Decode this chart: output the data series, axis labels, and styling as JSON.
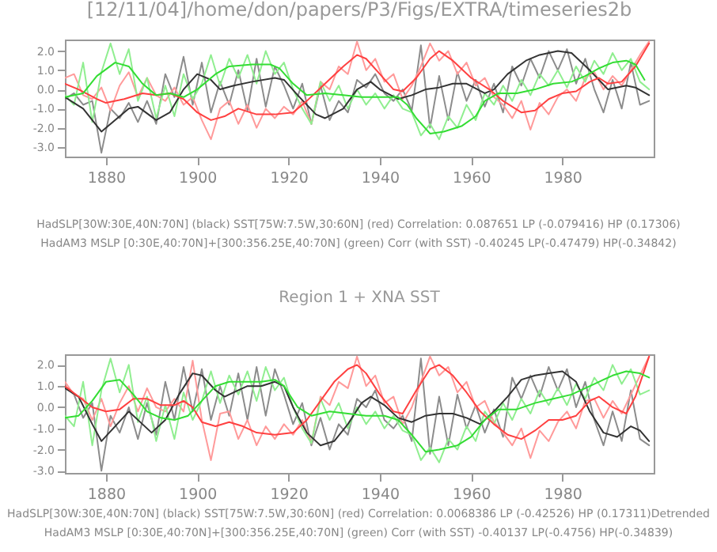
{
  "chart_data": [
    {
      "type": "line",
      "title": "[12/11/04]/home/don/papers/P3/Figs/EXTRA/timeseries2b",
      "xlim": [
        1871,
        2000
      ],
      "xticks": [
        1880,
        1900,
        1920,
        1940,
        1960,
        1980
      ],
      "ylim": [
        -3.5,
        2.6
      ],
      "yticks": [
        {
          "value": -3,
          "label": "-3.0"
        },
        {
          "value": -2,
          "label": "-2.0"
        },
        {
          "value": -1,
          "label": "-1.0"
        },
        {
          "value": 0,
          "label": "0.0"
        },
        {
          "value": 1,
          "label": "1.0"
        },
        {
          "value": 2,
          "label": "2.0"
        }
      ],
      "grid": false,
      "line_style": "solid",
      "annotations": [
        "HadSLP[30W:30E,40N:70N] (black) SST[75W:7.5W,30:60N] (red) Correlation: 0.087651 LP (-0.079416) HP (0.17306)",
        "HadAM3 MSLP [0:30E,40:70N]+[300:356.25E,40:70N] (green) Corr (with SST) -0.40245 LP(-0.47479) HP(-0.34842)"
      ],
      "series": [
        {
          "color": "#8c8c8c",
          "x": [
            1871,
            1873,
            1875,
            1877,
            1879,
            1881,
            1883,
            1885,
            1887,
            1889,
            1891,
            1893,
            1895,
            1897,
            1899,
            1901,
            1903,
            1905,
            1907,
            1909,
            1911,
            1913,
            1915,
            1917,
            1919,
            1921,
            1923,
            1925,
            1927,
            1929,
            1931,
            1933,
            1935,
            1937,
            1939,
            1941,
            1943,
            1945,
            1947,
            1949,
            1951,
            1953,
            1955,
            1957,
            1959,
            1961,
            1963,
            1965,
            1967,
            1969,
            1971,
            1973,
            1975,
            1977,
            1979,
            1981,
            1983,
            1985,
            1987,
            1989,
            1991,
            1993,
            1995,
            1997,
            1999
          ],
          "values": [
            -0.5,
            -0.2,
            -0.8,
            -0.6,
            -3.3,
            -1.0,
            -1.5,
            -0.7,
            -1.7,
            -0.6,
            -1.8,
            0.8,
            -0.4,
            1.7,
            -0.8,
            1.4,
            -1.2,
            0.4,
            -0.8,
            1.0,
            -1.1,
            1.6,
            -0.9,
            1.2,
            0.2,
            -1.0,
            0.3,
            -1.8,
            0.2,
            -1.6,
            -0.6,
            -1.2,
            0.5,
            0.1,
            0.8,
            -0.2,
            -0.6,
            0.0,
            -1.1,
            2.3,
            -2.0,
            0.7,
            -1.6,
            0.9,
            -0.6,
            0.5,
            -0.9,
            0.3,
            -1.2,
            1.2,
            0.2,
            1.6,
            0.6,
            2.0,
            1.0,
            2.1,
            0.3,
            1.6,
            0.0,
            -1.2,
            0.5,
            -1.0,
            1.4,
            -0.8,
            -0.6
          ]
        },
        {
          "color": "#ff9a9a",
          "x": [
            1871,
            1873,
            1875,
            1877,
            1879,
            1881,
            1883,
            1885,
            1887,
            1889,
            1891,
            1893,
            1895,
            1897,
            1899,
            1901,
            1903,
            1905,
            1907,
            1909,
            1911,
            1913,
            1915,
            1917,
            1919,
            1921,
            1923,
            1925,
            1927,
            1929,
            1931,
            1933,
            1935,
            1937,
            1939,
            1941,
            1943,
            1945,
            1947,
            1949,
            1951,
            1953,
            1955,
            1957,
            1959,
            1961,
            1963,
            1965,
            1967,
            1969,
            1971,
            1973,
            1975,
            1977,
            1979,
            1981,
            1983,
            1985,
            1987,
            1989,
            1991,
            1993,
            1995,
            1997,
            1999
          ],
          "values": [
            0.6,
            0.8,
            -0.3,
            -0.5,
            0.1,
            -1.1,
            0.2,
            0.9,
            -0.4,
            0.6,
            -0.3,
            -0.6,
            0.1,
            -0.8,
            -0.4,
            -1.6,
            -2.6,
            -1.0,
            -0.6,
            -1.8,
            -0.8,
            -2.0,
            -1.0,
            -1.5,
            -0.9,
            -1.3,
            -0.6,
            -1.8,
            0.4,
            0.0,
            1.2,
            0.8,
            2.5,
            1.0,
            1.6,
            0.4,
            0.8,
            -0.5,
            0.2,
            1.2,
            2.4,
            1.5,
            2.0,
            0.8,
            1.4,
            0.2,
            0.6,
            -0.4,
            -0.8,
            -1.5,
            -0.6,
            -2.1,
            -0.7,
            -1.3,
            -0.4,
            0.0,
            -0.6,
            0.6,
            0.9,
            0.0,
            0.7,
            0.2,
            1.0,
            1.8,
            2.5
          ]
        },
        {
          "color": "#90ee90",
          "x": [
            1871,
            1873,
            1875,
            1877,
            1879,
            1881,
            1883,
            1885,
            1887,
            1889,
            1891,
            1893,
            1895,
            1897,
            1899,
            1901,
            1903,
            1905,
            1907,
            1909,
            1911,
            1913,
            1915,
            1917,
            1919,
            1921,
            1923,
            1925,
            1927,
            1929,
            1931,
            1933,
            1935,
            1937,
            1939,
            1941,
            1943,
            1945,
            1947,
            1949,
            1951,
            1953,
            1955,
            1957,
            1959,
            1961,
            1963,
            1965,
            1967,
            1969,
            1971,
            1973,
            1975,
            1977,
            1979,
            1981,
            1983,
            1985,
            1987,
            1989,
            1991,
            1993,
            1995,
            1997,
            1999
          ],
          "values": [
            -0.3,
            -0.8,
            1.4,
            -1.7,
            0.9,
            2.4,
            0.8,
            2.1,
            -0.6,
            0.6,
            -1.5,
            0.2,
            -1.4,
            0.8,
            -0.5,
            0.3,
            1.8,
            0.2,
            1.6,
            0.6,
            1.8,
            0.3,
            2.0,
            0.8,
            1.4,
            0.0,
            -1.0,
            -1.8,
            0.4,
            -0.6,
            0.2,
            -1.0,
            0.0,
            -0.8,
            -0.2,
            -1.0,
            -0.3,
            -1.0,
            -1.2,
            -2.4,
            -1.8,
            -2.6,
            -1.4,
            -2.0,
            -0.8,
            -1.6,
            -0.2,
            -0.8,
            0.2,
            -0.6,
            0.5,
            -0.3,
            0.8,
            0.2,
            1.0,
            0.1,
            1.2,
            0.4,
            1.5,
            0.8,
            1.9,
            1.0,
            1.6,
            0.4,
            0.0
          ]
        },
        {
          "color": "#333333",
          "x": [
            1871,
            1875,
            1879,
            1885,
            1887,
            1891,
            1894,
            1897,
            1900,
            1903,
            1905,
            1908,
            1912,
            1917,
            1919,
            1922,
            1926,
            1928,
            1932,
            1935,
            1938,
            1940,
            1944,
            1947,
            1950,
            1953,
            1956,
            1959,
            1963,
            1965,
            1968,
            1972,
            1975,
            1979,
            1982,
            1986,
            1990,
            1994,
            1996,
            1999
          ],
          "values": [
            -0.4,
            -1.0,
            -2.2,
            -1.0,
            -0.9,
            -1.6,
            -1.2,
            0.0,
            0.8,
            0.5,
            0.0,
            0.2,
            0.4,
            0.6,
            0.5,
            -0.3,
            -1.3,
            -1.5,
            -1.0,
            0.0,
            0.4,
            0.0,
            -0.5,
            -0.3,
            0.0,
            0.1,
            0.3,
            0.3,
            -0.2,
            0.0,
            0.8,
            1.5,
            1.8,
            2.0,
            1.9,
            1.0,
            0.0,
            0.2,
            0.1,
            -0.3
          ]
        },
        {
          "color": "#ff4040",
          "x": [
            1871,
            1874,
            1878,
            1880,
            1884,
            1888,
            1891,
            1894,
            1897,
            1900,
            1903,
            1906,
            1909,
            1913,
            1917,
            1921,
            1924,
            1928,
            1932,
            1935,
            1937,
            1940,
            1943,
            1945,
            1948,
            1951,
            1953,
            1956,
            1960,
            1964,
            1967,
            1971,
            1974,
            1977,
            1980,
            1983,
            1986,
            1988,
            1990,
            1993,
            1996,
            1999
          ],
          "values": [
            0.3,
            0.0,
            -0.5,
            -0.7,
            -0.5,
            -0.2,
            -0.3,
            -0.2,
            -0.5,
            -1.2,
            -1.6,
            -1.4,
            -1.0,
            -1.3,
            -1.3,
            -1.2,
            -0.6,
            0.3,
            1.2,
            1.8,
            1.6,
            0.8,
            0.0,
            -0.1,
            0.6,
            1.6,
            2.0,
            1.5,
            0.6,
            0.0,
            -0.6,
            -1.2,
            -1.1,
            -0.5,
            -0.2,
            -0.1,
            0.4,
            0.6,
            0.3,
            0.4,
            1.2,
            2.4
          ]
        },
        {
          "color": "#33dd33",
          "x": [
            1871,
            1875,
            1878,
            1882,
            1885,
            1888,
            1891,
            1894,
            1897,
            1900,
            1904,
            1907,
            1912,
            1916,
            1918,
            1921,
            1924,
            1928,
            1932,
            1936,
            1940,
            1944,
            1946,
            1948,
            1951,
            1954,
            1958,
            1961,
            1963,
            1966,
            1970,
            1974,
            1978,
            1982,
            1985,
            1988,
            1991,
            1994,
            1996,
            1998
          ],
          "values": [
            -0.4,
            -0.2,
            0.7,
            1.4,
            1.2,
            0.3,
            -0.3,
            -0.2,
            -0.4,
            0.0,
            0.8,
            1.2,
            1.3,
            1.3,
            1.1,
            0.3,
            -0.3,
            -0.2,
            -0.3,
            -0.4,
            -0.4,
            -0.4,
            -0.8,
            -1.5,
            -2.3,
            -2.2,
            -1.9,
            -1.4,
            -0.6,
            -0.2,
            -0.2,
            0.0,
            0.3,
            0.4,
            0.7,
            1.1,
            1.4,
            1.5,
            1.3,
            0.5
          ]
        }
      ]
    },
    {
      "type": "line",
      "title": "Region 1 + XNA SST",
      "xlim": [
        1871,
        2000
      ],
      "xticks": [
        1880,
        1900,
        1920,
        1940,
        1960,
        1980
      ],
      "ylim": [
        -3.1,
        2.5
      ],
      "yticks": [
        {
          "value": -3,
          "label": "-3.0"
        },
        {
          "value": -2,
          "label": "-2.0"
        },
        {
          "value": -1,
          "label": "-1.0"
        },
        {
          "value": 0,
          "label": "0.0"
        },
        {
          "value": 1,
          "label": "1.0"
        },
        {
          "value": 2,
          "label": "2.0"
        }
      ],
      "grid": false,
      "line_style": "solid",
      "annotations": [
        "HadSLP[30W:30E,40N:70N] (black) SST[75W:7.5W,30:60N] (red) Correlation: 0.0068386 LP (-0.42526) HP (0.17311)Detrended",
        "HadAM3 MSLP [0:30E,40:70N]+[300:356.25E,40:70N] (green) Corr (with SST) -0.40137 LP(-0.4756) HP(-0.34839)"
      ],
      "series": [
        {
          "color": "#8c8c8c",
          "x": [
            1871,
            1873,
            1875,
            1877,
            1879,
            1881,
            1883,
            1885,
            1887,
            1889,
            1891,
            1893,
            1895,
            1897,
            1899,
            1901,
            1903,
            1905,
            1907,
            1909,
            1911,
            1913,
            1915,
            1917,
            1919,
            1921,
            1923,
            1925,
            1927,
            1929,
            1931,
            1933,
            1935,
            1937,
            1939,
            1941,
            1943,
            1945,
            1947,
            1949,
            1951,
            1953,
            1955,
            1957,
            1959,
            1961,
            1963,
            1965,
            1967,
            1969,
            1971,
            1973,
            1975,
            1977,
            1979,
            1981,
            1983,
            1985,
            1987,
            1989,
            1991,
            1993,
            1995,
            1997,
            1999
          ],
          "values": [
            1.0,
            0.6,
            -0.5,
            0.2,
            -3.0,
            -0.4,
            -1.2,
            0.0,
            -1.5,
            0.2,
            -1.3,
            1.2,
            -0.6,
            1.9,
            -0.2,
            1.8,
            -0.6,
            1.0,
            -0.4,
            1.6,
            -0.6,
            1.9,
            -0.4,
            1.8,
            0.6,
            -0.8,
            0.2,
            -1.8,
            -0.5,
            -2.0,
            -0.8,
            -1.3,
            0.4,
            0.0,
            0.8,
            -0.6,
            -1.0,
            -0.4,
            -1.6,
            2.3,
            -2.2,
            0.5,
            -1.8,
            0.6,
            -1.0,
            0.1,
            -1.2,
            -0.1,
            -1.4,
            1.4,
            0.4,
            1.5,
            0.5,
            1.9,
            0.8,
            1.8,
            0.0,
            1.2,
            -0.6,
            -1.8,
            -0.2,
            -1.6,
            0.8,
            -1.5,
            -1.8
          ]
        },
        {
          "color": "#ff9a9a",
          "x": [
            1871,
            1873,
            1875,
            1877,
            1879,
            1881,
            1883,
            1885,
            1887,
            1889,
            1891,
            1893,
            1895,
            1897,
            1899,
            1901,
            1903,
            1905,
            1907,
            1909,
            1911,
            1913,
            1915,
            1917,
            1919,
            1921,
            1923,
            1925,
            1927,
            1929,
            1931,
            1933,
            1935,
            1937,
            1939,
            1941,
            1943,
            1945,
            1947,
            1949,
            1951,
            1953,
            1955,
            1957,
            1959,
            1961,
            1963,
            1965,
            1967,
            1969,
            1971,
            1973,
            1975,
            1977,
            1979,
            1981,
            1983,
            1985,
            1987,
            1989,
            1991,
            1993,
            1995,
            1997,
            1999
          ],
          "values": [
            1.2,
            0.6,
            0.4,
            -0.6,
            0.4,
            -0.9,
            0.2,
            1.0,
            -0.2,
            0.9,
            0.0,
            -0.2,
            0.4,
            -0.2,
            2.2,
            -0.6,
            -2.5,
            -0.3,
            -0.2,
            -1.5,
            -0.6,
            -1.8,
            -0.9,
            -1.5,
            -0.8,
            -1.3,
            -0.6,
            -1.7,
            0.5,
            0.1,
            1.2,
            0.9,
            2.4,
            1.0,
            1.5,
            0.2,
            0.5,
            -0.8,
            0.0,
            1.2,
            2.4,
            1.5,
            1.9,
            0.7,
            1.2,
            0.0,
            0.3,
            -0.7,
            -1.2,
            -1.8,
            -1.0,
            -2.4,
            -1.1,
            -1.6,
            -0.7,
            -0.2,
            -1.0,
            0.3,
            0.4,
            -0.5,
            0.3,
            -0.3,
            0.6,
            1.5,
            2.4
          ]
        },
        {
          "color": "#90ee90",
          "x": [
            1871,
            1873,
            1875,
            1877,
            1879,
            1881,
            1883,
            1885,
            1887,
            1889,
            1891,
            1893,
            1895,
            1897,
            1899,
            1901,
            1903,
            1905,
            1907,
            1909,
            1911,
            1913,
            1915,
            1917,
            1919,
            1921,
            1923,
            1925,
            1927,
            1929,
            1931,
            1933,
            1935,
            1937,
            1939,
            1941,
            1943,
            1945,
            1947,
            1949,
            1951,
            1953,
            1955,
            1957,
            1959,
            1961,
            1963,
            1965,
            1967,
            1969,
            1971,
            1973,
            1975,
            1977,
            1979,
            1981,
            1983,
            1985,
            1987,
            1989,
            1991,
            1993,
            1995,
            1997,
            1999
          ],
          "values": [
            -0.4,
            -0.9,
            1.2,
            -1.8,
            0.8,
            2.3,
            0.7,
            2.0,
            -0.7,
            0.5,
            -1.6,
            0.1,
            -1.5,
            0.7,
            -0.6,
            0.3,
            1.7,
            0.2,
            1.5,
            0.6,
            1.7,
            0.3,
            1.9,
            0.8,
            1.4,
            0.0,
            -1.0,
            -1.7,
            0.4,
            -0.6,
            0.2,
            -1.0,
            0.0,
            -0.8,
            -0.2,
            -1.0,
            -0.4,
            -1.1,
            -1.3,
            -2.5,
            -1.9,
            -2.6,
            -1.5,
            -2.0,
            -0.9,
            -1.6,
            -0.2,
            -0.8,
            0.2,
            -0.6,
            0.4,
            -0.3,
            0.8,
            0.1,
            0.9,
            0.1,
            1.1,
            0.4,
            1.4,
            0.8,
            2.0,
            1.1,
            1.8,
            0.6,
            0.8
          ]
        },
        {
          "color": "#333333",
          "x": [
            1871,
            1874,
            1877,
            1879,
            1882,
            1885,
            1888,
            1890,
            1893,
            1896,
            1899,
            1901,
            1904,
            1906,
            1908,
            1911,
            1914,
            1917,
            1919,
            1921,
            1924,
            1927,
            1930,
            1933,
            1936,
            1938,
            1941,
            1944,
            1947,
            1950,
            1953,
            1956,
            1959,
            1962,
            1965,
            1968,
            1971,
            1974,
            1977,
            1980,
            1983,
            1986,
            1989,
            1992,
            1995,
            1997,
            1999
          ],
          "values": [
            0.9,
            0.5,
            -0.8,
            -1.6,
            -0.9,
            -0.2,
            -0.8,
            -1.2,
            -0.6,
            0.6,
            1.6,
            1.5,
            0.8,
            0.5,
            0.7,
            1.0,
            1.0,
            1.2,
            1.0,
            0.0,
            -1.2,
            -1.8,
            -1.6,
            -0.8,
            0.2,
            0.5,
            0.1,
            -0.5,
            -0.7,
            -0.4,
            -0.3,
            -0.3,
            -0.5,
            -0.8,
            -0.2,
            0.5,
            1.3,
            1.5,
            1.6,
            1.7,
            1.2,
            -0.2,
            -1.2,
            -1.4,
            -0.9,
            -1.1,
            -1.6
          ]
        },
        {
          "color": "#ff4040",
          "x": [
            1871,
            1874,
            1877,
            1880,
            1883,
            1886,
            1889,
            1892,
            1895,
            1897,
            1899,
            1901,
            1904,
            1907,
            1910,
            1913,
            1917,
            1921,
            1924,
            1927,
            1930,
            1933,
            1935,
            1937,
            1940,
            1943,
            1945,
            1948,
            1951,
            1953,
            1956,
            1959,
            1962,
            1965,
            1968,
            1971,
            1974,
            1977,
            1980,
            1983,
            1986,
            1988,
            1991,
            1994,
            1996,
            1999
          ],
          "values": [
            1.0,
            0.5,
            0.0,
            -0.2,
            -0.1,
            0.4,
            0.4,
            0.1,
            0.1,
            0.3,
            0.0,
            -0.7,
            -0.9,
            -0.7,
            -0.9,
            -1.2,
            -1.3,
            -1.2,
            -0.6,
            0.3,
            1.2,
            1.8,
            2.0,
            1.6,
            0.6,
            -0.2,
            -0.3,
            0.8,
            1.8,
            2.0,
            1.5,
            0.7,
            -0.2,
            -0.8,
            -1.3,
            -1.5,
            -1.1,
            -0.6,
            -0.6,
            -0.4,
            0.3,
            0.5,
            0.0,
            -0.3,
            0.5,
            2.4
          ]
        },
        {
          "color": "#33dd33",
          "x": [
            1871,
            1874,
            1877,
            1880,
            1883,
            1886,
            1889,
            1892,
            1895,
            1898,
            1901,
            1904,
            1907,
            1911,
            1914,
            1917,
            1919,
            1922,
            1925,
            1929,
            1933,
            1937,
            1941,
            1944,
            1947,
            1950,
            1953,
            1957,
            1960,
            1963,
            1966,
            1970,
            1974,
            1978,
            1982,
            1985,
            1988,
            1991,
            1994,
            1997,
            1999
          ],
          "values": [
            -0.5,
            -0.4,
            0.3,
            1.2,
            1.3,
            0.6,
            -0.2,
            -0.5,
            -0.6,
            -0.4,
            0.3,
            1.0,
            1.2,
            1.2,
            1.2,
            1.3,
            1.0,
            0.0,
            -0.4,
            -0.2,
            -0.3,
            -0.4,
            -0.4,
            -0.6,
            -1.3,
            -2.1,
            -2.0,
            -1.8,
            -1.4,
            -0.6,
            -0.1,
            -0.1,
            0.2,
            0.4,
            0.6,
            0.9,
            1.2,
            1.5,
            1.7,
            1.6,
            1.4
          ]
        }
      ]
    }
  ]
}
